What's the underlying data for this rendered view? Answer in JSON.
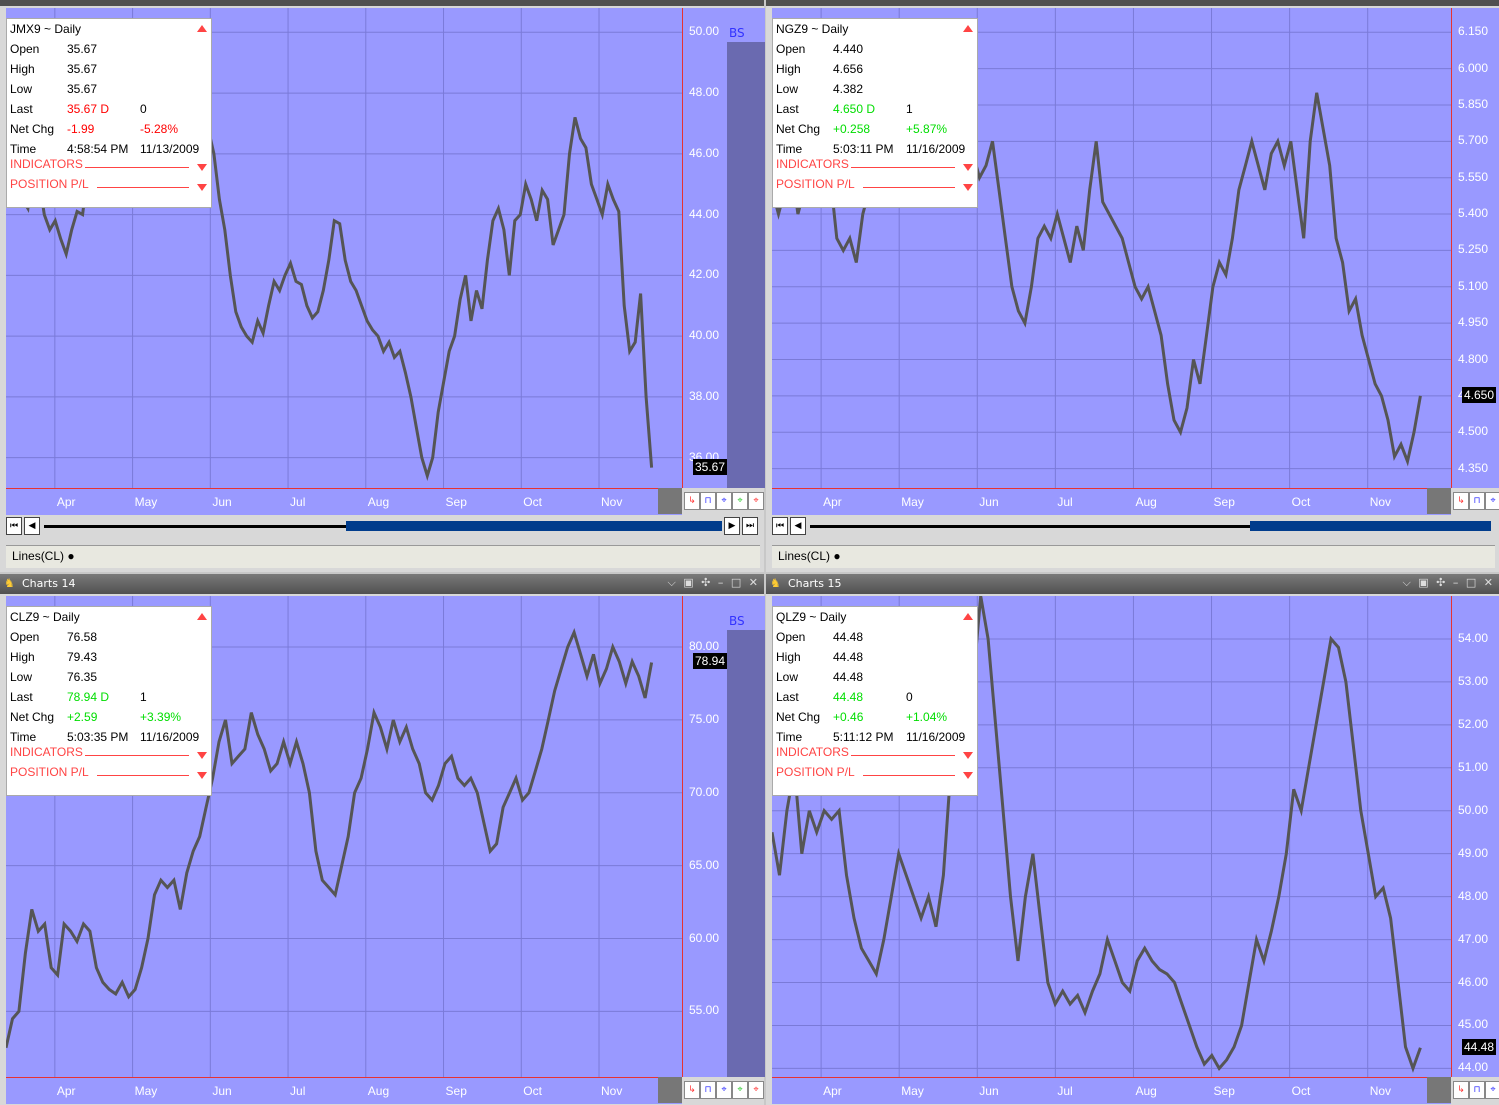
{
  "windows": [
    {
      "id": "jmx9",
      "title": "",
      "symbol": "JMX9 ~ Daily",
      "open": "35.67",
      "high": "35.67",
      "low": "35.67",
      "last": "35.67 D",
      "last_n": "0",
      "last_color": "red",
      "netchg": "-1.99",
      "netpct": "-5.28%",
      "chg_color": "red",
      "time": "4:58:54 PM",
      "date": "11/13/2009",
      "last_label": "35.67",
      "show_bs": true,
      "yticks": [
        "50.00",
        "48.00",
        "46.00",
        "44.00",
        "42.00",
        "40.00",
        "38.00",
        "36.00"
      ],
      "ylim": [
        35.0,
        50.8
      ],
      "months": [
        "Apr",
        "May",
        "Jun",
        "Jul",
        "Aug",
        "Sep",
        "Oct",
        "Nov"
      ],
      "prices": [
        45.5,
        46.8,
        46.0,
        44.5,
        44.2,
        45.8,
        45.2,
        44.0,
        43.5,
        43.8,
        43.2,
        42.7,
        43.5,
        44.1,
        44.0,
        45.5,
        46.0,
        47.5,
        48.0,
        46.5,
        45.8,
        47.3,
        48.3,
        48.1,
        47.0,
        46.5,
        47.0,
        46.2,
        45.2,
        46.0,
        46.5,
        47.5,
        48.3,
        48.0,
        48.3,
        47.8,
        47.0,
        46.8,
        46.0,
        44.5,
        43.5,
        42.0,
        40.8,
        40.3,
        40.0,
        39.8,
        40.5,
        40.1,
        41.0,
        41.8,
        41.5,
        42.0,
        42.4,
        41.8,
        41.7,
        41.0,
        40.6,
        40.8,
        41.5,
        42.5,
        43.8,
        43.7,
        42.5,
        41.8,
        41.5,
        41.0,
        40.5,
        40.2,
        40.0,
        39.5,
        39.8,
        39.3,
        39.5,
        38.8,
        38.0,
        37.0,
        36.0,
        35.4,
        36.0,
        37.5,
        38.5,
        39.5,
        40.0,
        41.2,
        42.0,
        40.5,
        41.5,
        40.9,
        42.5,
        43.8,
        44.2,
        43.5,
        42.0,
        43.8,
        44.0,
        45.0,
        44.5,
        43.8,
        44.8,
        44.5,
        43.0,
        43.5,
        44.0,
        46.0,
        47.2,
        46.5,
        46.2,
        45.0,
        44.5,
        44.0,
        45.0,
        44.5,
        44.1,
        41.0,
        39.5,
        39.8,
        41.4,
        38.0,
        35.67
      ],
      "has_scroll_right": true,
      "status": "Lines(CL)"
    },
    {
      "id": "ngz9",
      "title": "",
      "symbol": "NGZ9 ~ Daily",
      "open": "4.440",
      "high": "4.656",
      "low": "4.382",
      "last": "4.650 D",
      "last_n": "1",
      "last_color": "grn",
      "netchg": "+0.258",
      "netpct": "+5.87%",
      "chg_color": "grn",
      "time": "5:03:11 PM",
      "date": "11/16/2009",
      "last_label": "4.650",
      "show_bs": false,
      "yticks": [
        "6.150",
        "6.000",
        "5.850",
        "5.700",
        "5.550",
        "5.400",
        "5.250",
        "5.100",
        "4.950",
        "4.800",
        "4.650",
        "4.500",
        "4.350"
      ],
      "ylim": [
        4.27,
        6.25
      ],
      "months": [
        "Apr",
        "May",
        "Jun",
        "Jul",
        "Aug",
        "Sep",
        "Oct",
        "Nov"
      ],
      "prices": [
        5.5,
        5.4,
        5.5,
        5.6,
        5.4,
        5.5,
        5.6,
        5.45,
        5.5,
        5.55,
        5.3,
        5.25,
        5.3,
        5.2,
        5.4,
        5.5,
        5.6,
        5.45,
        5.55,
        5.6,
        5.7,
        5.8,
        5.75,
        5.9,
        5.85,
        5.8,
        5.9,
        6.05,
        5.95,
        5.9,
        5.8,
        5.65,
        5.55,
        5.6,
        5.7,
        5.5,
        5.3,
        5.1,
        5.0,
        4.95,
        5.1,
        5.3,
        5.35,
        5.3,
        5.4,
        5.3,
        5.2,
        5.35,
        5.25,
        5.5,
        5.7,
        5.45,
        5.4,
        5.35,
        5.3,
        5.2,
        5.1,
        5.05,
        5.1,
        5.0,
        4.9,
        4.7,
        4.55,
        4.5,
        4.6,
        4.8,
        4.7,
        4.9,
        5.1,
        5.2,
        5.15,
        5.3,
        5.5,
        5.6,
        5.7,
        5.6,
        5.5,
        5.65,
        5.7,
        5.6,
        5.7,
        5.5,
        5.3,
        5.7,
        5.9,
        5.75,
        5.6,
        5.3,
        5.2,
        5.0,
        5.05,
        4.9,
        4.8,
        4.7,
        4.65,
        4.55,
        4.4,
        4.45,
        4.38,
        4.5,
        4.65
      ],
      "has_scroll_right": false,
      "status": "Lines(CL)"
    },
    {
      "id": "clz9",
      "title": "Charts 14",
      "symbol": "CLZ9 ~ Daily",
      "open": "76.58",
      "high": "79.43",
      "low": "76.35",
      "last": "78.94 D",
      "last_n": "1",
      "last_color": "grn",
      "netchg": "+2.59",
      "netpct": "+3.39%",
      "chg_color": "grn",
      "time": "5:03:35 PM",
      "date": "11/16/2009",
      "last_label": "78.94",
      "show_bs": true,
      "yticks": [
        "80.00",
        "75.00",
        "70.00",
        "65.00",
        "60.00",
        "55.00"
      ],
      "ylim": [
        50.5,
        83.5
      ],
      "months": [
        "Apr",
        "May",
        "Jun",
        "Jul",
        "Aug",
        "Sep",
        "Oct",
        "Nov"
      ],
      "prices": [
        52.5,
        54.5,
        55.0,
        59.0,
        62.0,
        60.5,
        61.0,
        58.0,
        57.5,
        61.0,
        60.5,
        59.8,
        61.0,
        60.5,
        58.0,
        57.0,
        56.5,
        56.2,
        57.0,
        56.0,
        56.5,
        58.0,
        60.0,
        63.0,
        64.0,
        63.5,
        64.0,
        62.0,
        64.5,
        66.0,
        67.0,
        69.0,
        71.0,
        73.5,
        75.0,
        72.0,
        72.5,
        73.0,
        75.5,
        74.0,
        73.0,
        71.5,
        72.0,
        73.5,
        72.0,
        73.5,
        72.0,
        70.0,
        66.0,
        64.0,
        63.5,
        63.0,
        65.0,
        67.0,
        70.0,
        71.0,
        73.0,
        75.5,
        74.5,
        73.0,
        75.0,
        73.5,
        74.5,
        73.0,
        72.0,
        70.0,
        69.5,
        70.5,
        72.0,
        72.5,
        71.0,
        70.5,
        71.0,
        70.0,
        68.0,
        66.0,
        66.5,
        69.0,
        70.0,
        71.0,
        69.5,
        70.0,
        71.5,
        73.0,
        75.0,
        77.0,
        78.5,
        80.0,
        81.0,
        79.5,
        78.0,
        79.5,
        77.5,
        78.5,
        80.0,
        79.0,
        77.5,
        79.0,
        78.0,
        76.5,
        78.94
      ],
      "has_scroll_right": false,
      "status": ""
    },
    {
      "id": "qlz9",
      "title": "Charts 15",
      "symbol": "QLZ9 ~ Daily",
      "open": "44.48",
      "high": "44.48",
      "low": "44.48",
      "last": "44.48",
      "last_n": "0",
      "last_color": "grn",
      "netchg": "+0.46",
      "netpct": "+1.04%",
      "chg_color": "grn",
      "time": "5:11:12 PM",
      "date": "11/16/2009",
      "last_label": "44.48",
      "show_bs": false,
      "yticks": [
        "54.00",
        "53.00",
        "52.00",
        "51.00",
        "50.00",
        "49.00",
        "48.00",
        "47.00",
        "46.00",
        "45.00",
        "44.00"
      ],
      "ylim": [
        43.8,
        55.0
      ],
      "months": [
        "Apr",
        "May",
        "Jun",
        "Jul",
        "Aug",
        "Sep",
        "Oct",
        "Nov"
      ],
      "prices": [
        49.5,
        48.5,
        50.0,
        51.0,
        49.0,
        50.0,
        49.5,
        50.0,
        49.8,
        50.0,
        48.5,
        47.5,
        46.8,
        46.5,
        46.2,
        47.0,
        48.0,
        49.0,
        48.5,
        48.0,
        47.5,
        48.0,
        47.3,
        48.5,
        51.0,
        52.0,
        51.5,
        53.0,
        55.0,
        54.0,
        52.0,
        50.0,
        48.0,
        46.5,
        48.0,
        49.0,
        47.5,
        46.0,
        45.5,
        45.8,
        45.5,
        45.7,
        45.3,
        45.8,
        46.2,
        47.0,
        46.5,
        46.0,
        45.8,
        46.5,
        46.8,
        46.5,
        46.3,
        46.2,
        46.0,
        45.5,
        45.0,
        44.5,
        44.1,
        44.3,
        44.0,
        44.2,
        44.5,
        45.0,
        46.0,
        47.0,
        46.5,
        47.2,
        48.0,
        49.0,
        50.5,
        50.0,
        51.0,
        52.0,
        53.0,
        54.0,
        53.8,
        53.0,
        51.5,
        50.0,
        49.0,
        48.0,
        48.2,
        47.5,
        46.0,
        44.5,
        44.0,
        44.48
      ],
      "has_scroll_right": false,
      "status": ""
    }
  ],
  "labels": {
    "open": "Open",
    "high": "High",
    "low": "Low",
    "last": "Last",
    "netchg": "Net Chg",
    "time": "Time",
    "indicators": "INDICATORS",
    "position": "POSITION P/L",
    "bs": "BS"
  },
  "colors": {
    "plot_bg": "#9999ff",
    "price_line": "#555555",
    "grid": "#7a7ad8",
    "axis_red": "#e63333"
  }
}
